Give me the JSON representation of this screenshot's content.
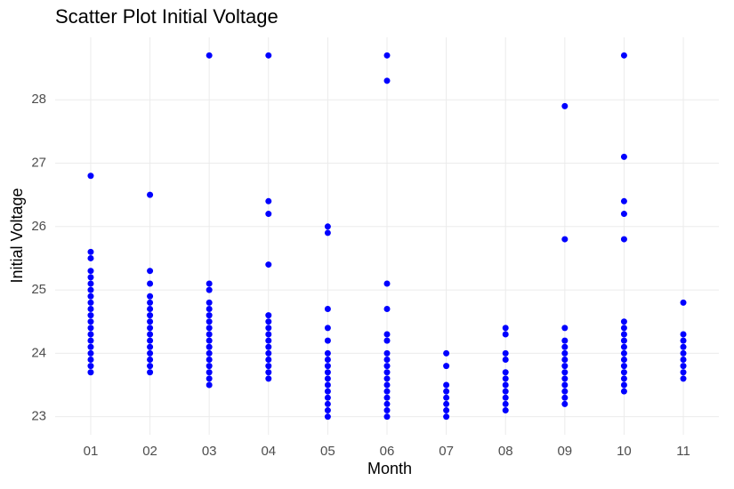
{
  "chart_data": {
    "type": "scatter",
    "title": "Scatter Plot Initial Voltage",
    "x_label": "Month",
    "y_label": "Initial Voltage",
    "categories": [
      "01",
      "02",
      "03",
      "04",
      "05",
      "06",
      "07",
      "08",
      "09",
      "10",
      "11"
    ],
    "values": [
      [
        26.8,
        25.6,
        25.5,
        25.3,
        25.2,
        25.1,
        25.0,
        24.9,
        24.8,
        24.7,
        24.6,
        24.5,
        24.4,
        24.3,
        24.2,
        24.1,
        24.0,
        23.9,
        23.8,
        23.7
      ],
      [
        26.5,
        25.3,
        25.1,
        24.9,
        24.8,
        24.7,
        24.6,
        24.5,
        24.4,
        24.3,
        24.2,
        24.1,
        24.0,
        23.9,
        23.8,
        23.7
      ],
      [
        28.7,
        25.1,
        25.0,
        24.8,
        24.7,
        24.6,
        24.5,
        24.4,
        24.3,
        24.2,
        24.1,
        24.0,
        23.9,
        23.8,
        23.7,
        23.6,
        23.5
      ],
      [
        28.7,
        26.4,
        26.2,
        25.4,
        24.6,
        24.5,
        24.4,
        24.3,
        24.2,
        24.1,
        24.0,
        23.9,
        23.8,
        23.7,
        23.6
      ],
      [
        26.0,
        25.9,
        24.7,
        24.4,
        24.2,
        24.0,
        23.9,
        23.8,
        23.7,
        23.6,
        23.5,
        23.4,
        23.3,
        23.2,
        23.1,
        23.0
      ],
      [
        28.7,
        28.3,
        25.1,
        24.7,
        24.3,
        24.2,
        24.0,
        23.9,
        23.8,
        23.7,
        23.6,
        23.5,
        23.4,
        23.3,
        23.2,
        23.1,
        23.0
      ],
      [
        24.0,
        23.8,
        23.5,
        23.4,
        23.3,
        23.2,
        23.1,
        23.0
      ],
      [
        24.4,
        24.3,
        24.0,
        23.9,
        23.7,
        23.6,
        23.5,
        23.4,
        23.3,
        23.2,
        23.1
      ],
      [
        27.9,
        25.8,
        24.4,
        24.2,
        24.1,
        24.0,
        23.9,
        23.8,
        23.7,
        23.6,
        23.5,
        23.4,
        23.3,
        23.2
      ],
      [
        28.7,
        27.1,
        26.4,
        26.2,
        25.8,
        24.5,
        24.4,
        24.3,
        24.2,
        24.1,
        24.0,
        23.9,
        23.8,
        23.7,
        23.6,
        23.5,
        23.4
      ],
      [
        24.8,
        24.3,
        24.2,
        24.1,
        24.0,
        23.9,
        23.8,
        23.7,
        23.6
      ]
    ],
    "color": "#0000ff",
    "ylim": [
      22.715,
      28.985
    ],
    "yticks": [
      23,
      24,
      25,
      26,
      27,
      28
    ],
    "grid": true
  }
}
